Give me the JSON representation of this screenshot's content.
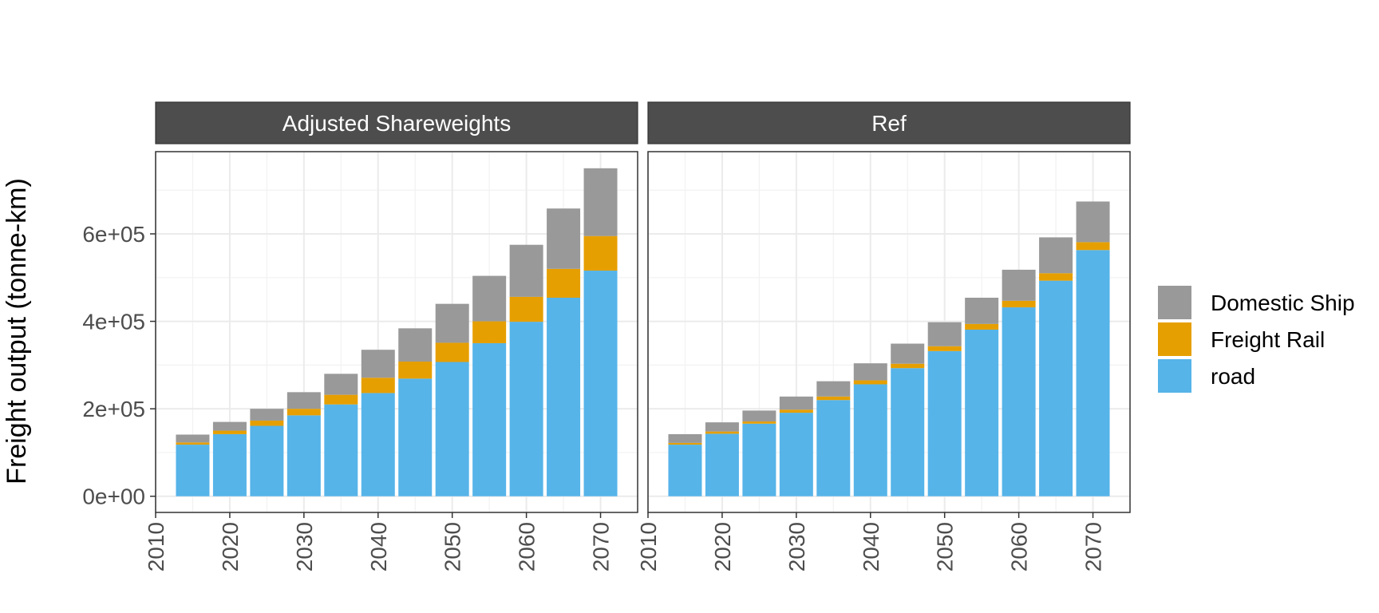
{
  "chart_data": {
    "type": "bar",
    "stacked": true,
    "ylabel": "Freight output (tonne-km)",
    "xlabel": "",
    "x": [
      2015,
      2020,
      2025,
      2030,
      2035,
      2040,
      2045,
      2050,
      2055,
      2060,
      2065,
      2070
    ],
    "x_ticks": [
      2010,
      2020,
      2030,
      2040,
      2050,
      2060,
      2070
    ],
    "xlim": [
      2010,
      2075
    ],
    "y_ticks": [
      0,
      200000,
      400000,
      600000
    ],
    "y_tick_labels": [
      "0e+00",
      "2e+05",
      "4e+05",
      "6e+05"
    ],
    "ylim": [
      -37000,
      788000
    ],
    "grid": true,
    "legend": {
      "position": "right",
      "entries": [
        {
          "label": "Domestic Ship",
          "color": "#999999"
        },
        {
          "label": "Freight Rail",
          "color": "#E69F00"
        },
        {
          "label": "road",
          "color": "#56B4E9"
        }
      ]
    },
    "stack_order": [
      "road",
      "Freight Rail",
      "Domestic Ship"
    ],
    "panels": [
      {
        "title": "Adjusted Shareweights",
        "series": [
          {
            "name": "road",
            "color": "#56B4E9",
            "values": [
              118000,
              142000,
              161000,
              185000,
              210000,
              236000,
              269000,
              307000,
              350000,
              399000,
              454000,
              516000
            ]
          },
          {
            "name": "Freight Rail",
            "color": "#E69F00",
            "values": [
              5000,
              8000,
              12000,
              15000,
              22000,
              35000,
              39000,
              44000,
              50000,
              57000,
              66000,
              79000
            ]
          },
          {
            "name": "Domestic Ship",
            "color": "#999999",
            "values": [
              18000,
              20000,
              27000,
              38000,
              48000,
              64000,
              76000,
              89000,
              104000,
              119000,
              138000,
              155000
            ]
          }
        ]
      },
      {
        "title": "Ref",
        "series": [
          {
            "name": "road",
            "color": "#56B4E9",
            "values": [
              118000,
              143000,
              166000,
              191000,
              220000,
              256000,
              293000,
              332000,
              381000,
              432000,
              493000,
              563000
            ]
          },
          {
            "name": "Freight Rail",
            "color": "#E69F00",
            "values": [
              4000,
              5000,
              5000,
              7000,
              8000,
              9000,
              10000,
              11000,
              13000,
              15000,
              17000,
              18000
            ]
          },
          {
            "name": "Domestic Ship",
            "color": "#999999",
            "values": [
              20000,
              21000,
              25000,
              30000,
              35000,
              39000,
              46000,
              55000,
              60000,
              71000,
              82000,
              93000
            ]
          }
        ]
      }
    ]
  }
}
